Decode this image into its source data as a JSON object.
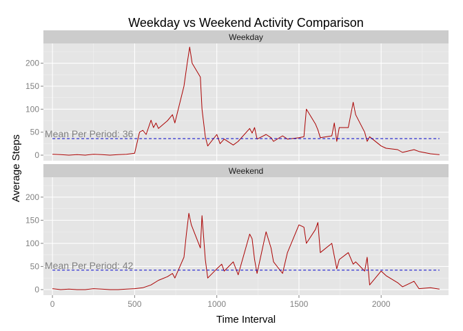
{
  "chart_data": {
    "type": "line",
    "title": "Weekday vs Weekend Activity Comparison",
    "xlabel": "Time Interval",
    "ylabel": "Average Steps",
    "xlim": [
      -55,
      2410
    ],
    "ylim": [
      -12,
      243
    ],
    "x_ticks": [
      0,
      500,
      1000,
      1500,
      2000
    ],
    "y_ticks": [
      0,
      50,
      100,
      150,
      200
    ],
    "grid": true,
    "colors": {
      "panel_bg": "#e5e5e5",
      "strip_bg": "#cccccc",
      "grid_major": "#ffffff",
      "grid_minor": "#f2f2f2",
      "line": "#aa0000",
      "mean_line": "#0000cc",
      "annotation": "#808080",
      "tick_text": "#808080"
    },
    "facets": [
      {
        "strip_label": "Weekday",
        "mean_label": "Mean Per Period: 36",
        "mean_value": 36,
        "series": [
          {
            "x": [
              0,
              50,
              100,
              150,
              200,
              250,
              300,
              350,
              400,
              450,
              500,
              530,
              550,
              570,
              600,
              615,
              630,
              645,
              700,
              730,
              745,
              800,
              820,
              835,
              850,
              900,
              910,
              930,
              945,
              1000,
              1020,
              1045,
              1100,
              1130,
              1200,
              1215,
              1230,
              1245,
              1300,
              1330,
              1345,
              1400,
              1430,
              1500,
              1530,
              1545,
              1600,
              1615,
              1630,
              1700,
              1715,
              1730,
              1745,
              1800,
              1830,
              1845,
              1900,
              1915,
              1930,
              2000,
              2030,
              2100,
              2130,
              2200,
              2230,
              2300,
              2355
            ],
            "y": [
              2,
              1,
              0,
              1,
              0,
              2,
              1,
              0,
              1,
              2,
              4,
              50,
              54,
              45,
              76,
              60,
              70,
              58,
              75,
              88,
              70,
              150,
              200,
              235,
              200,
              170,
              100,
              40,
              20,
              45,
              25,
              35,
              22,
              30,
              58,
              48,
              60,
              35,
              45,
              38,
              30,
              42,
              35,
              38,
              40,
              100,
              68,
              55,
              38,
              42,
              70,
              30,
              60,
              60,
              115,
              88,
              50,
              30,
              40,
              20,
              15,
              12,
              6,
              12,
              8,
              3,
              1
            ]
          }
        ]
      },
      {
        "strip_label": "Weekend",
        "mean_label": "Mean Per Period: 42",
        "mean_value": 42,
        "series": [
          {
            "x": [
              0,
              50,
              100,
              150,
              200,
              250,
              300,
              350,
              400,
              450,
              500,
              550,
              600,
              645,
              700,
              730,
              745,
              800,
              815,
              830,
              845,
              900,
              910,
              930,
              945,
              1000,
              1030,
              1045,
              1100,
              1130,
              1200,
              1215,
              1230,
              1245,
              1300,
              1330,
              1345,
              1400,
              1430,
              1500,
              1530,
              1545,
              1600,
              1615,
              1630,
              1700,
              1730,
              1745,
              1800,
              1830,
              1845,
              1900,
              1915,
              1930,
              2000,
              2030,
              2100,
              2130,
              2200,
              2230,
              2300,
              2355
            ],
            "y": [
              2,
              0,
              1,
              0,
              0,
              2,
              1,
              0,
              0,
              1,
              2,
              4,
              10,
              20,
              28,
              35,
              25,
              70,
              120,
              165,
              140,
              90,
              160,
              65,
              25,
              45,
              55,
              40,
              60,
              32,
              120,
              110,
              65,
              35,
              125,
              90,
              60,
              35,
              80,
              140,
              135,
              100,
              130,
              145,
              80,
              100,
              45,
              65,
              80,
              55,
              60,
              40,
              70,
              10,
              40,
              30,
              15,
              6,
              18,
              2,
              4,
              1
            ]
          }
        ]
      }
    ]
  }
}
